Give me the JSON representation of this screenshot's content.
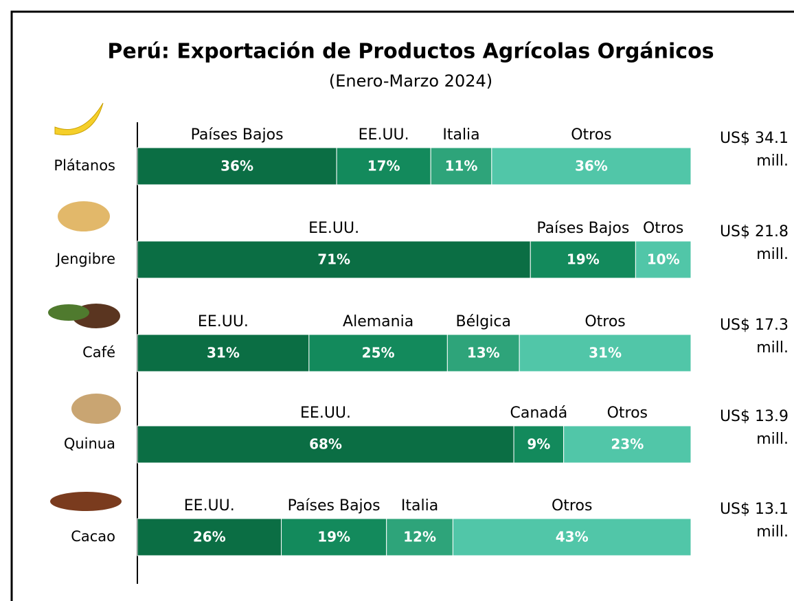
{
  "chart_data": {
    "type": "stacked-bar-horizontal",
    "title": "Perú: Exportación de Productos Agrícolas Orgánicos",
    "subtitle": "(Enero-Marzo 2024)",
    "xlim": [
      0,
      100
    ],
    "rows": [
      {
        "category": "Plátanos",
        "segments": [
          "Países Bajos",
          "EE.UU.",
          "Italia",
          "Otros"
        ],
        "values": [
          36,
          17,
          11,
          36
        ],
        "value_labels": [
          "36%",
          "17%",
          "11%",
          "36%"
        ],
        "colors": [
          "#0b6e44",
          "#138a5c",
          "#2ea47a",
          "#51c6a8"
        ],
        "total": "US$ 34.1 mill."
      },
      {
        "category": "Jengibre",
        "segments": [
          "EE.UU.",
          "Países Bajos",
          "Otros"
        ],
        "values": [
          71,
          19,
          10
        ],
        "value_labels": [
          "71%",
          "19%",
          "10%"
        ],
        "colors": [
          "#0b6e44",
          "#138a5c",
          "#51c6a8"
        ],
        "total": "US$ 21.8 mill."
      },
      {
        "category": "Café",
        "segments": [
          "EE.UU.",
          "Alemania",
          "Bélgica",
          "Otros"
        ],
        "values": [
          31,
          25,
          13,
          31
        ],
        "value_labels": [
          "31%",
          "25%",
          "13%",
          "31%"
        ],
        "colors": [
          "#0b6e44",
          "#138a5c",
          "#2ea47a",
          "#51c6a8"
        ],
        "total": "US$ 17.3 mill."
      },
      {
        "category": "Quinua",
        "segments": [
          "EE.UU.",
          "Canadá",
          "Otros"
        ],
        "values": [
          68,
          9,
          23
        ],
        "value_labels": [
          "68%",
          "9%",
          "23%"
        ],
        "colors": [
          "#0b6e44",
          "#138a5c",
          "#51c6a8"
        ],
        "total": "US$ 13.9 mill."
      },
      {
        "category": "Cacao",
        "segments": [
          "EE.UU.",
          "Países Bajos",
          "Italia",
          "Otros"
        ],
        "values": [
          26,
          19,
          12,
          43
        ],
        "value_labels": [
          "26%",
          "19%",
          "12%",
          "43%"
        ],
        "colors": [
          "#0b6e44",
          "#138a5c",
          "#2ea47a",
          "#51c6a8"
        ],
        "total": "US$ 13.1 mill."
      }
    ]
  }
}
